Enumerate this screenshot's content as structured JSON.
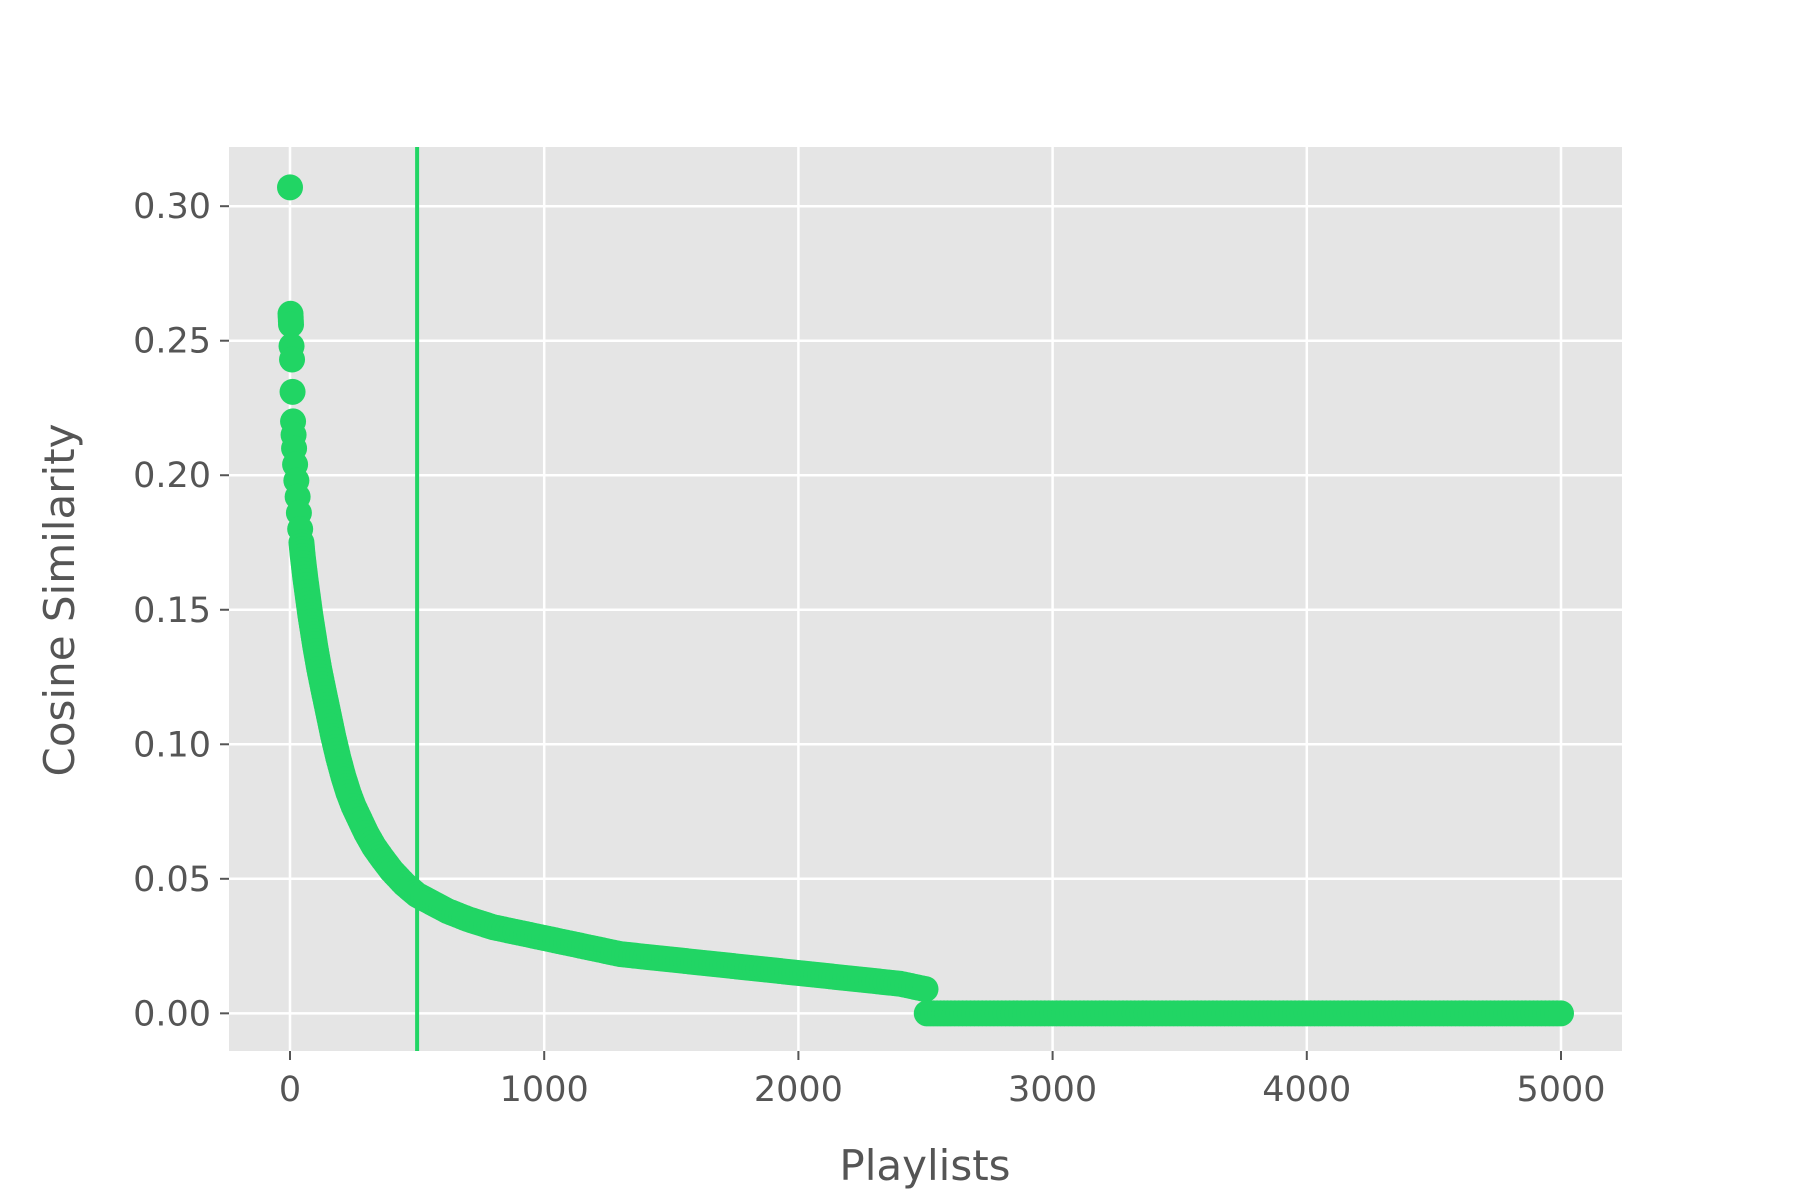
{
  "chart_data": {
    "type": "scatter",
    "title": "",
    "xlabel": "Playlists",
    "ylabel": "Cosine Similarity",
    "xlim": [
      -240,
      5240
    ],
    "ylim": [
      -0.014,
      0.322
    ],
    "x_ticks": [
      0,
      1000,
      2000,
      3000,
      4000,
      5000
    ],
    "x_tick_labels": [
      "0",
      "1000",
      "2000",
      "3000",
      "4000",
      "5000"
    ],
    "y_ticks": [
      0.0,
      0.05,
      0.1,
      0.15,
      0.2,
      0.25,
      0.3
    ],
    "y_tick_labels": [
      "0.00",
      "0.05",
      "0.10",
      "0.15",
      "0.20",
      "0.25",
      "0.30"
    ],
    "grid": true,
    "legend": false,
    "vertical_line_x": 500,
    "colors": {
      "points": "#21d564",
      "line": "#21d564",
      "plot_bg": "#e5e5e5",
      "grid": "#ffffff",
      "text": "#555555"
    },
    "series": [
      {
        "values_xy": [
          [
            0,
            0.307
          ],
          [
            2,
            0.26
          ],
          [
            4,
            0.256
          ],
          [
            6,
            0.248
          ],
          [
            8,
            0.243
          ],
          [
            10,
            0.231
          ],
          [
            12,
            0.22
          ],
          [
            14,
            0.215
          ],
          [
            16,
            0.21
          ],
          [
            20,
            0.204
          ],
          [
            25,
            0.198
          ],
          [
            30,
            0.192
          ],
          [
            35,
            0.186
          ],
          [
            40,
            0.18
          ],
          [
            45,
            0.175
          ],
          [
            50,
            0.17
          ],
          [
            60,
            0.162
          ],
          [
            70,
            0.155
          ],
          [
            80,
            0.148
          ],
          [
            90,
            0.142
          ],
          [
            100,
            0.136
          ],
          [
            115,
            0.128
          ],
          [
            130,
            0.121
          ],
          [
            150,
            0.112
          ],
          [
            170,
            0.103
          ],
          [
            190,
            0.095
          ],
          [
            210,
            0.088
          ],
          [
            230,
            0.082
          ],
          [
            250,
            0.077
          ],
          [
            275,
            0.072
          ],
          [
            300,
            0.067
          ],
          [
            330,
            0.062
          ],
          [
            360,
            0.058
          ],
          [
            400,
            0.053
          ],
          [
            450,
            0.048
          ],
          [
            500,
            0.044
          ],
          [
            560,
            0.041
          ],
          [
            620,
            0.038
          ],
          [
            700,
            0.035
          ],
          [
            800,
            0.032
          ],
          [
            900,
            0.03
          ],
          [
            1000,
            0.028
          ],
          [
            1100,
            0.026
          ],
          [
            1200,
            0.024
          ],
          [
            1300,
            0.022
          ],
          [
            1400,
            0.021
          ],
          [
            1500,
            0.02
          ],
          [
            1600,
            0.019
          ],
          [
            1700,
            0.018
          ],
          [
            1800,
            0.017
          ],
          [
            1900,
            0.016
          ],
          [
            2000,
            0.015
          ],
          [
            2100,
            0.014
          ],
          [
            2200,
            0.013
          ],
          [
            2300,
            0.012
          ],
          [
            2400,
            0.011
          ],
          [
            2500,
            0.009
          ],
          [
            2505,
            0.0
          ],
          [
            2600,
            0.0
          ],
          [
            2800,
            0.0
          ],
          [
            3000,
            0.0
          ],
          [
            3200,
            0.0
          ],
          [
            3400,
            0.0
          ],
          [
            3600,
            0.0
          ],
          [
            3800,
            0.0
          ],
          [
            4000,
            0.0
          ],
          [
            4200,
            0.0
          ],
          [
            4400,
            0.0
          ],
          [
            4600,
            0.0
          ],
          [
            4800,
            0.0
          ],
          [
            5000,
            0.0
          ]
        ]
      }
    ]
  }
}
